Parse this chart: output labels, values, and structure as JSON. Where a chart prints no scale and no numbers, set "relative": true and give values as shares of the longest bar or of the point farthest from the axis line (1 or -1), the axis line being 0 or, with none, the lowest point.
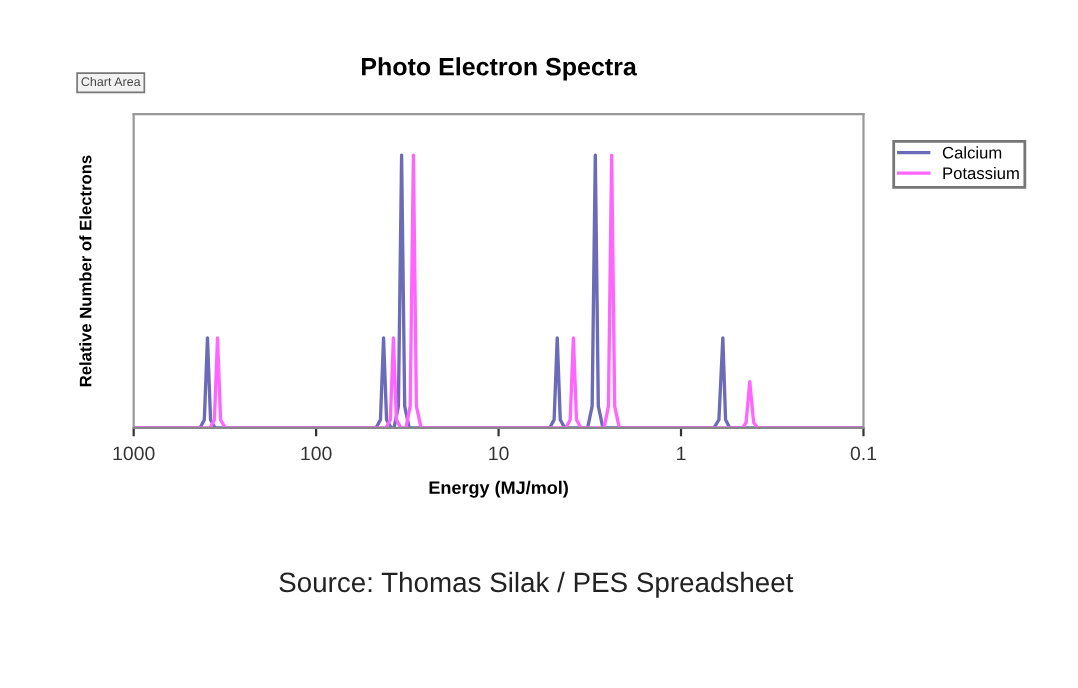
{
  "chart_data": {
    "type": "line",
    "title": "Photo Electron Spectra",
    "xlabel": "Energy (MJ/mol)",
    "ylabel": "Relative Number of Electrons",
    "annotations": [
      "Chart Area",
      "Source: Thomas Silak / PES Spreadsheet"
    ],
    "log": "x",
    "xlim": [
      1000,
      0.1
    ],
    "xticks": [
      1000,
      100,
      10,
      1,
      0.1
    ],
    "relative": true,
    "tick_labels": "x",
    "grid": false,
    "legend": "right",
    "marker": "none",
    "line_style": "solid",
    "series": [
      {
        "name": "Calcium",
        "color": "#6b6bb8",
        "x": [
          1000,
          433,
          410,
          394,
          379,
          358,
          47,
          44.4,
          42.7,
          41.1,
          38.8,
          37.4,
          35.4,
          34,
          32.7,
          30.9,
          5.25,
          4.96,
          4.77,
          4.59,
          4.34,
          3.25,
          3.07,
          2.95,
          2.84,
          2.68,
          0.66,
          0.62,
          0.59,
          0.57,
          0.54,
          0.1
        ],
        "values": [
          0,
          0,
          0.03,
          0.33,
          0.03,
          0,
          0,
          0.03,
          0.33,
          0.03,
          0,
          0,
          0.08,
          1,
          0.08,
          0,
          0,
          0.03,
          0.33,
          0.03,
          0,
          0,
          0.08,
          1,
          0.08,
          0,
          0,
          0.03,
          0.33,
          0.03,
          0,
          0
        ]
      },
      {
        "name": "Potassium",
        "color": "#ff66ff",
        "x": [
          1000,
          382,
          361,
          347,
          334,
          315,
          41.5,
          39.2,
          37.7,
          36.3,
          34.3,
          32.2,
          30.5,
          29.3,
          28.2,
          26.6,
          4.28,
          4.05,
          3.89,
          3.74,
          3.54,
          2.64,
          2.5,
          2.4,
          2.31,
          2.18,
          0.46,
          0.44,
          0.42,
          0.4,
          0.38,
          0.1
        ],
        "values": [
          0,
          0,
          0.03,
          0.33,
          0.03,
          0,
          0,
          0.03,
          0.33,
          0.03,
          0,
          0,
          0.08,
          1,
          0.08,
          0,
          0,
          0.03,
          0.33,
          0.03,
          0,
          0,
          0.08,
          1,
          0.08,
          0,
          0,
          0.02,
          0.17,
          0.02,
          0,
          0
        ]
      }
    ]
  }
}
